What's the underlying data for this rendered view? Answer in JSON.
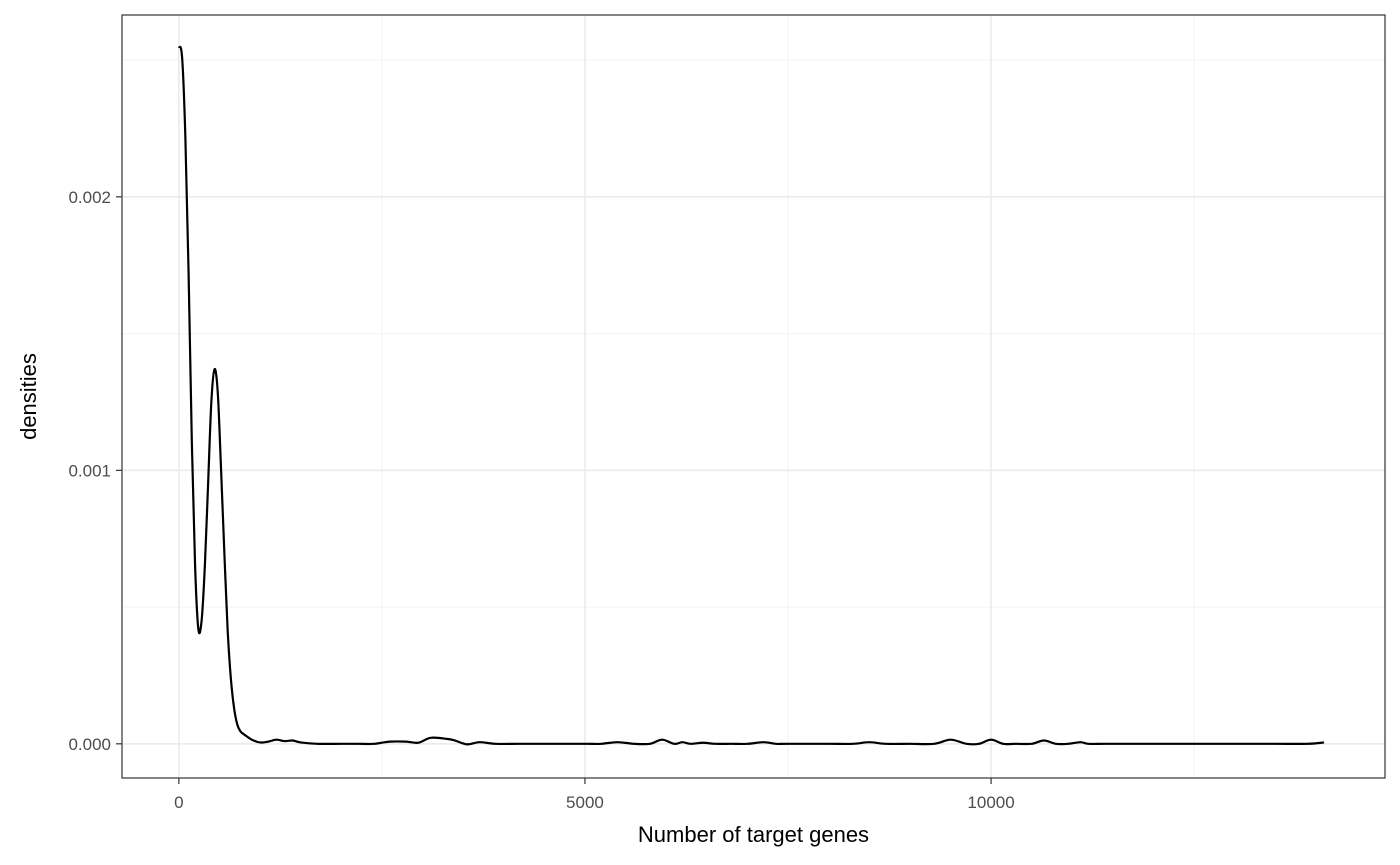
{
  "chart_data": {
    "type": "line",
    "title": "",
    "xlabel": "Number of target genes",
    "ylabel": "densities",
    "xlim": [
      -700,
      14850
    ],
    "ylim": [
      -0.000125,
      0.002665
    ],
    "x_ticks": [
      {
        "value": 0,
        "label": "0"
      },
      {
        "value": 5000,
        "label": "5000"
      },
      {
        "value": 10000,
        "label": "10000"
      }
    ],
    "x_minor_ticks": [
      2500,
      7500,
      12500
    ],
    "y_ticks": [
      {
        "value": 0,
        "label": "0.000"
      },
      {
        "value": 0.001,
        "label": "0.001"
      },
      {
        "value": 0.002,
        "label": "0.002"
      }
    ],
    "y_minor_ticks": [
      0.0005,
      0.0015,
      0.0025
    ],
    "grid": true,
    "line_color": "#000000",
    "series": [
      {
        "x": [
          0,
          40,
          80,
          120,
          160,
          200,
          240,
          280,
          320,
          360,
          400,
          440,
          480,
          520,
          560,
          600,
          640,
          680,
          720,
          760,
          800,
          900,
          1000,
          1100,
          1200,
          1300,
          1400,
          1500,
          1700,
          2000,
          2200,
          2400,
          2600,
          2800,
          2950,
          3100,
          3300,
          3400,
          3550,
          3700,
          3900,
          4200,
          4500,
          5000,
          5200,
          5400,
          5600,
          5800,
          5950,
          6100,
          6200,
          6300,
          6450,
          6600,
          6800,
          7000,
          7200,
          7350,
          7500,
          8000,
          8300,
          8500,
          8700,
          9000,
          9300,
          9500,
          9700,
          9850,
          10000,
          10150,
          10300,
          10500,
          10650,
          10800,
          10950,
          11100,
          11200,
          11400,
          11700,
          12000,
          12500,
          13000,
          13500,
          13900,
          14100
        ],
        "y": [
          0.00255,
          0.00251,
          0.00222,
          0.00172,
          0.0011,
          0.00065,
          0.00042,
          0.00045,
          0.00065,
          0.00095,
          0.00125,
          0.00137,
          0.00128,
          0.001,
          0.0007,
          0.00042,
          0.00024,
          0.00013,
          7e-05,
          4.5e-05,
          3.5e-05,
          1.5e-05,
          5e-06,
          8e-06,
          1.5e-05,
          1e-05,
          1.2e-05,
          5e-06,
          0.0,
          0.0,
          0.0,
          0.0,
          8e-06,
          8e-06,
          4e-06,
          2.2e-05,
          1.8e-05,
          1.2e-05,
          -2e-06,
          6e-06,
          0.0,
          0.0,
          0.0,
          0.0,
          0.0,
          6e-06,
          0.0,
          0.0,
          1.5e-05,
          0.0,
          6e-06,
          0.0,
          4e-06,
          0.0,
          0.0,
          0.0,
          6e-06,
          0.0,
          0.0,
          0.0,
          0.0,
          6e-06,
          0.0,
          0.0,
          0.0,
          1.5e-05,
          0.0,
          0.0,
          1.5e-05,
          0.0,
          0.0,
          0.0,
          1.2e-05,
          0.0,
          0.0,
          6e-06,
          0.0,
          0.0,
          0.0,
          0.0,
          0.0,
          0.0,
          0.0,
          0.0,
          5e-06
        ]
      }
    ]
  }
}
